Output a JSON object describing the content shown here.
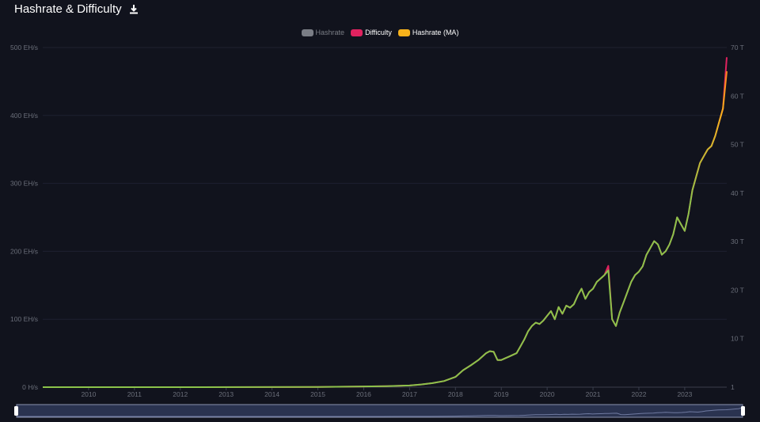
{
  "header": {
    "title": "Hashrate & Difficulty"
  },
  "icons": {
    "download": "download-icon"
  },
  "colors": {
    "background": "#11131d",
    "hashrate": "#7a7d85",
    "difficulty": "#e0225f",
    "hashrate_ma": "#f7b21b",
    "ma_low": "#8bc34a",
    "grid": "#1e2130",
    "axis_text": "#6b6f7a",
    "navigator": "#2a3350"
  },
  "chart_data": {
    "type": "line",
    "title": "",
    "legend": {
      "placement": "top-center",
      "items": [
        {
          "label": "Hashrate",
          "color": "#7a7d85",
          "active": false
        },
        {
          "label": "Difficulty",
          "color": "#e0225f",
          "active": true
        },
        {
          "label": "Hashrate (MA)",
          "color": "#f7b21b",
          "active": true
        }
      ]
    },
    "x_ticks": [
      "2010",
      "2011",
      "2012",
      "2013",
      "2014",
      "2015",
      "2016",
      "2017",
      "2018",
      "2019",
      "2020",
      "2021",
      "2022",
      "2023"
    ],
    "xlim": [
      "2009-01",
      "2023-12"
    ],
    "y_left": {
      "ticks": [
        "0 H/s",
        "100 EH/s",
        "200 EH/s",
        "300 EH/s",
        "400 EH/s",
        "500 EH/s"
      ],
      "ylim": [
        0,
        500
      ],
      "unit": "EH/s"
    },
    "y_right": {
      "ticks": [
        "1",
        "10 T",
        "20 T",
        "30 T",
        "40 T",
        "50 T",
        "60 T",
        "70 T"
      ],
      "ylim": [
        0,
        70
      ],
      "unit": "T"
    },
    "grid": true,
    "series": [
      {
        "name": "Hashrate (MA)",
        "x": [
          "2009-01",
          "2012-01",
          "2015-01",
          "2016-01",
          "2016-07",
          "2017-01",
          "2017-04",
          "2017-07",
          "2017-10",
          "2018-01",
          "2018-03",
          "2018-05",
          "2018-07",
          "2018-09",
          "2018-10",
          "2018-11",
          "2018-12",
          "2019-01",
          "2019-03",
          "2019-05",
          "2019-06",
          "2019-07",
          "2019-08",
          "2019-09",
          "2019-10",
          "2019-11",
          "2019-12",
          "2020-01",
          "2020-02",
          "2020-03",
          "2020-04",
          "2020-05",
          "2020-06",
          "2020-07",
          "2020-08",
          "2020-09",
          "2020-10",
          "2020-11",
          "2020-12",
          "2021-01",
          "2021-02",
          "2021-03",
          "2021-04",
          "2021-05",
          "2021-06",
          "2021-07",
          "2021-08",
          "2021-09",
          "2021-10",
          "2021-11",
          "2021-12",
          "2022-01",
          "2022-02",
          "2022-03",
          "2022-04",
          "2022-05",
          "2022-06",
          "2022-07",
          "2022-08",
          "2022-09",
          "2022-10",
          "2022-11",
          "2022-12",
          "2023-01",
          "2023-02",
          "2023-03",
          "2023-04",
          "2023-05",
          "2023-06",
          "2023-07",
          "2023-08",
          "2023-09",
          "2023-10",
          "2023-11",
          "2023-12"
        ],
        "values": [
          0,
          0,
          0.3,
          1,
          1.5,
          2.5,
          4,
          6,
          9,
          15,
          25,
          32,
          40,
          50,
          53,
          52,
          40,
          40,
          45,
          50,
          60,
          70,
          82,
          90,
          95,
          93,
          98,
          105,
          112,
          100,
          118,
          108,
          120,
          117,
          122,
          135,
          145,
          130,
          140,
          145,
          155,
          160,
          165,
          172,
          100,
          90,
          110,
          125,
          140,
          155,
          165,
          170,
          178,
          195,
          205,
          215,
          210,
          195,
          200,
          210,
          225,
          250,
          240,
          230,
          255,
          290,
          310,
          330,
          340,
          350,
          355,
          370,
          390,
          410,
          465
        ]
      },
      {
        "name": "Difficulty",
        "x": [
          "2009-01",
          "2012-01",
          "2015-01",
          "2016-01",
          "2016-07",
          "2017-01",
          "2017-04",
          "2017-07",
          "2017-10",
          "2018-01",
          "2018-03",
          "2018-05",
          "2018-07",
          "2018-09",
          "2018-10",
          "2018-11",
          "2018-12",
          "2019-01",
          "2019-03",
          "2019-05",
          "2019-06",
          "2019-07",
          "2019-08",
          "2019-09",
          "2019-10",
          "2019-11",
          "2019-12",
          "2020-01",
          "2020-02",
          "2020-03",
          "2020-04",
          "2020-05",
          "2020-06",
          "2020-07",
          "2020-08",
          "2020-09",
          "2020-10",
          "2020-11",
          "2020-12",
          "2021-01",
          "2021-02",
          "2021-03",
          "2021-04",
          "2021-05",
          "2021-06",
          "2021-07",
          "2021-08",
          "2021-09",
          "2021-10",
          "2021-11",
          "2021-12",
          "2022-01",
          "2022-02",
          "2022-03",
          "2022-04",
          "2022-05",
          "2022-06",
          "2022-07",
          "2022-08",
          "2022-09",
          "2022-10",
          "2022-11",
          "2022-12",
          "2023-01",
          "2023-02",
          "2023-03",
          "2023-04",
          "2023-05",
          "2023-06",
          "2023-07",
          "2023-08",
          "2023-09",
          "2023-10",
          "2023-11",
          "2023-12"
        ],
        "values": [
          0,
          0,
          0.04,
          0.14,
          0.21,
          0.35,
          0.56,
          0.84,
          1.26,
          2.1,
          3.5,
          4.5,
          5.6,
          7,
          7.4,
          7.3,
          5.6,
          5.6,
          6.3,
          7,
          8.4,
          9.8,
          11.5,
          12.6,
          13.3,
          13,
          13.7,
          14.7,
          15.7,
          14,
          16.5,
          15.1,
          16.8,
          16.4,
          17.1,
          18.9,
          20.3,
          18.2,
          19.6,
          20.3,
          21.7,
          22.4,
          23.1,
          25,
          14,
          12.6,
          15.4,
          17.5,
          19.6,
          21.7,
          23.1,
          23.8,
          24.9,
          27.3,
          28.7,
          30.1,
          29.4,
          27.3,
          28,
          29.4,
          31.5,
          35,
          33.6,
          32.2,
          35.7,
          40.6,
          43.4,
          46.2,
          47.6,
          49,
          49.7,
          51.8,
          54.6,
          57.4,
          68
        ]
      }
    ]
  },
  "navigator": {
    "label": "range-navigator"
  }
}
